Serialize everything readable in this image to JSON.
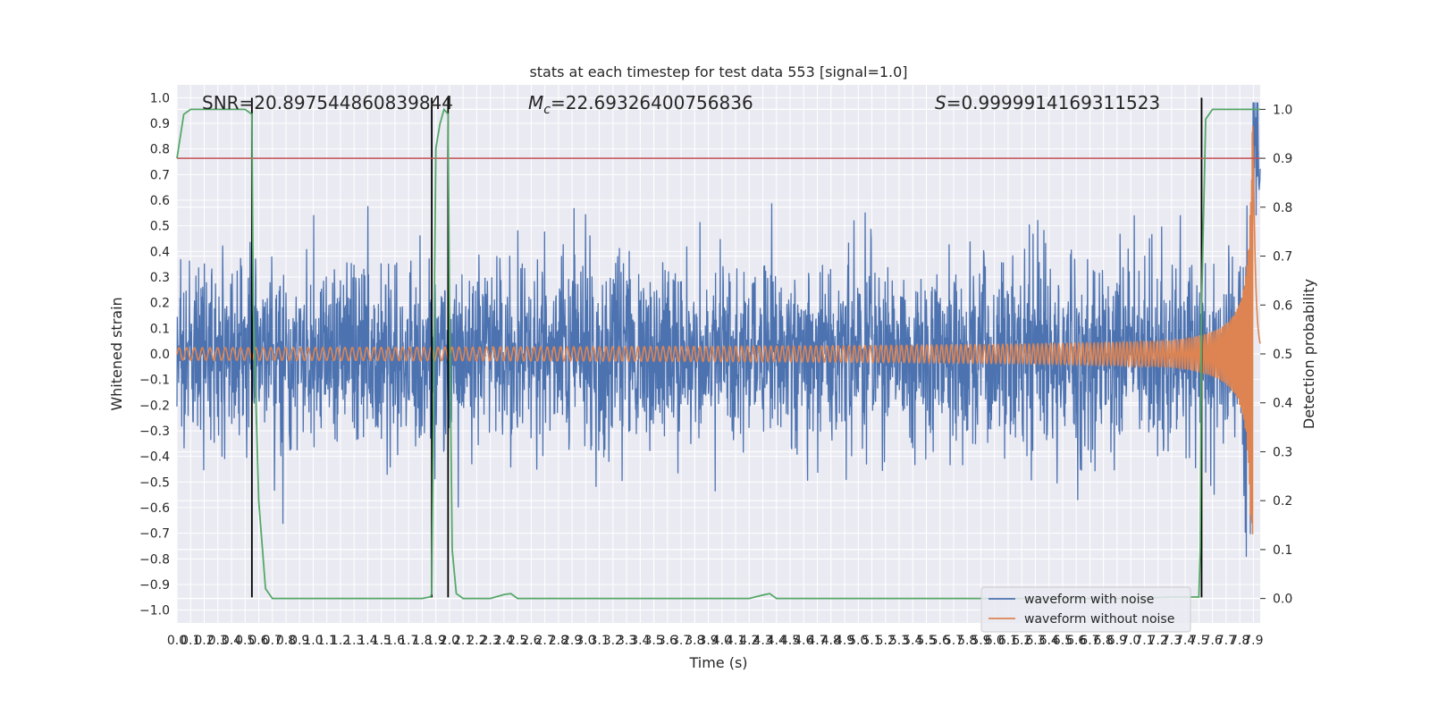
{
  "chart_data": {
    "type": "line",
    "title": "stats at each timestep for test data 553 [signal=1.0]",
    "xlabel": "Time (s)",
    "ylabel": "Whitened strain",
    "ylabel_right": "Detection probability",
    "xlim": [
      0.0,
      7.95
    ],
    "ylim": [
      -1.05,
      1.05
    ],
    "ylim_right": [
      -0.05,
      1.05
    ],
    "grid": true,
    "legend_position": "lower-right",
    "annotations": {
      "snr_label": "SNR=20.897544860839844",
      "mc_prefix": "M",
      "mc_sub": "c",
      "mc_value": "=22.69326400756836",
      "s_prefix": "S",
      "s_value": "=0.9999914169311523"
    },
    "x_tick_labels": [
      "0.0",
      "0.1",
      "0.2",
      "0.3",
      "0.4",
      "0.5",
      "0.6",
      "0.7",
      "0.8",
      "0.9",
      "1.0",
      "1.1",
      "1.2",
      "1.3",
      "1.4",
      "1.5",
      "1.6",
      "1.7",
      "1.8",
      "1.9",
      "2.0",
      "2.1",
      "2.2",
      "2.3",
      "2.4",
      "2.5",
      "2.6",
      "2.7",
      "2.8",
      "2.9",
      "3.0",
      "3.1",
      "3.2",
      "3.3",
      "3.4",
      "3.5",
      "3.6",
      "3.7",
      "3.8",
      "3.9",
      "4.0",
      "4.1",
      "4.2",
      "4.3",
      "4.4",
      "4.5",
      "4.6",
      "4.7",
      "4.8",
      "4.9",
      "5.0",
      "5.1",
      "5.2",
      "5.3",
      "5.4",
      "5.5",
      "5.6",
      "5.7",
      "5.8",
      "5.9",
      "6.0",
      "6.1",
      "6.2",
      "6.3",
      "6.4",
      "6.5",
      "6.6",
      "6.7",
      "6.8",
      "6.9",
      "7.0",
      "7.1",
      "7.2",
      "7.3",
      "7.4",
      "7.5",
      "7.6",
      "7.7",
      "7.8",
      "7.9"
    ],
    "y_tick_labels": [
      "−1.0",
      "−0.9",
      "−0.8",
      "−0.7",
      "−0.6",
      "−0.5",
      "−0.4",
      "−0.3",
      "−0.2",
      "−0.1",
      "0.0",
      "0.1",
      "0.2",
      "0.3",
      "0.4",
      "0.5",
      "0.6",
      "0.7",
      "0.8",
      "0.9",
      "1.0"
    ],
    "y_right_tick_labels": [
      "0.0",
      "0.1",
      "0.2",
      "0.3",
      "0.4",
      "0.5",
      "0.6",
      "0.7",
      "0.8",
      "0.9",
      "1.0"
    ],
    "threshold": 0.9,
    "detection_boundaries": [
      0.55,
      1.87,
      1.99,
      7.52
    ],
    "series": [
      {
        "name": "waveform with noise",
        "color": "#4c72b0",
        "noise_amplitude": 0.28
      },
      {
        "name": "waveform without noise",
        "color": "#dd8452",
        "merger_time": 7.9,
        "peak_amplitude": 0.9
      },
      {
        "color": "#55a868",
        "x": [
          0.0,
          0.05,
          0.1,
          0.15,
          0.2,
          0.25,
          0.3,
          0.35,
          0.4,
          0.45,
          0.5,
          0.55,
          0.56,
          0.6,
          0.65,
          0.7,
          0.8,
          1.0,
          1.2,
          1.4,
          1.6,
          1.8,
          1.85,
          1.86,
          1.87,
          1.9,
          1.93,
          1.96,
          1.99,
          2.0,
          2.02,
          2.05,
          2.1,
          2.2,
          2.3,
          2.4,
          2.45,
          2.5,
          2.6,
          2.8,
          3.0,
          3.2,
          3.4,
          3.6,
          3.8,
          4.0,
          4.2,
          4.3,
          4.35,
          4.4,
          4.5,
          4.8,
          5.0,
          5.5,
          6.0,
          6.5,
          7.0,
          7.3,
          7.4,
          7.5,
          7.51,
          7.52,
          7.55,
          7.6,
          7.7,
          7.8,
          7.9,
          7.95
        ],
        "y": [
          0.9,
          0.99,
          1.0,
          1.0,
          1.0,
          1.0,
          1.0,
          1.0,
          1.0,
          1.0,
          1.0,
          0.99,
          0.6,
          0.2,
          0.02,
          0.0,
          0.0,
          0.0,
          0.0,
          0.0,
          0.0,
          0.0,
          0.003,
          0.003,
          0.01,
          0.92,
          0.97,
          1.0,
          0.99,
          0.6,
          0.1,
          0.01,
          0.0,
          0.0,
          0.0,
          0.008,
          0.01,
          0.0,
          0.0,
          0.0,
          0.0,
          0.0,
          0.0,
          0.0,
          0.0,
          0.0,
          0.0,
          0.007,
          0.01,
          0.0,
          0.0,
          0.0,
          0.0,
          0.0,
          0.0,
          0.0,
          0.0,
          0.003,
          0.003,
          0.003,
          0.1,
          0.6,
          0.98,
          1.0,
          1.0,
          1.0,
          1.0,
          1.0
        ]
      }
    ]
  }
}
